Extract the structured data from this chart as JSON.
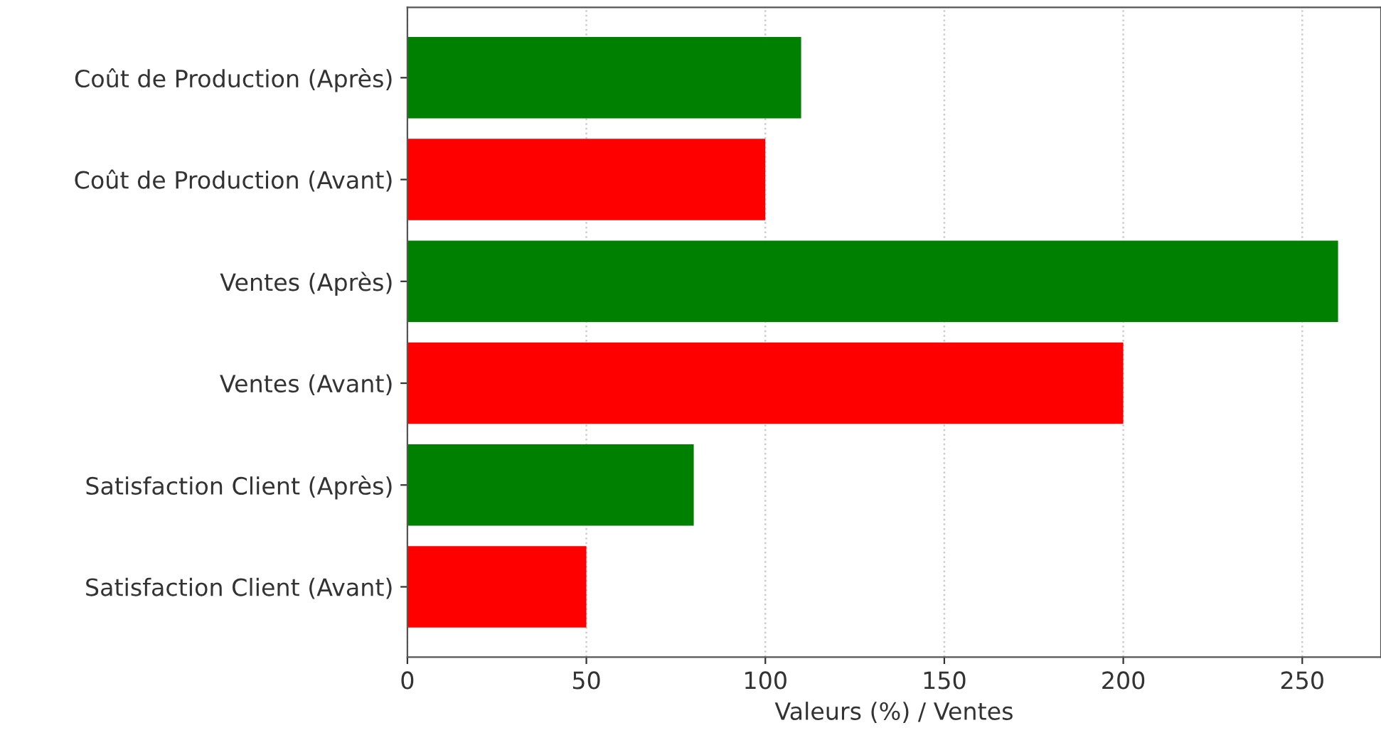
{
  "chart_data": {
    "type": "bar",
    "orientation": "horizontal",
    "xlabel": "Valeurs (%) / Ventes",
    "categories": [
      "Coût de Production (Après)",
      "Coût de Production (Avant)",
      "Ventes (Après)",
      "Ventes (Avant)",
      "Satisfaction Client (Après)",
      "Satisfaction Client (Avant)"
    ],
    "values": [
      110,
      100,
      260,
      200,
      80,
      50
    ],
    "colors": [
      "#008000",
      "#ff0000",
      "#008000",
      "#ff0000",
      "#008000",
      "#ff0000"
    ],
    "xlim": [
      0,
      272
    ],
    "xticks": [
      0,
      50,
      100,
      150,
      200,
      250
    ],
    "grid": "x"
  }
}
